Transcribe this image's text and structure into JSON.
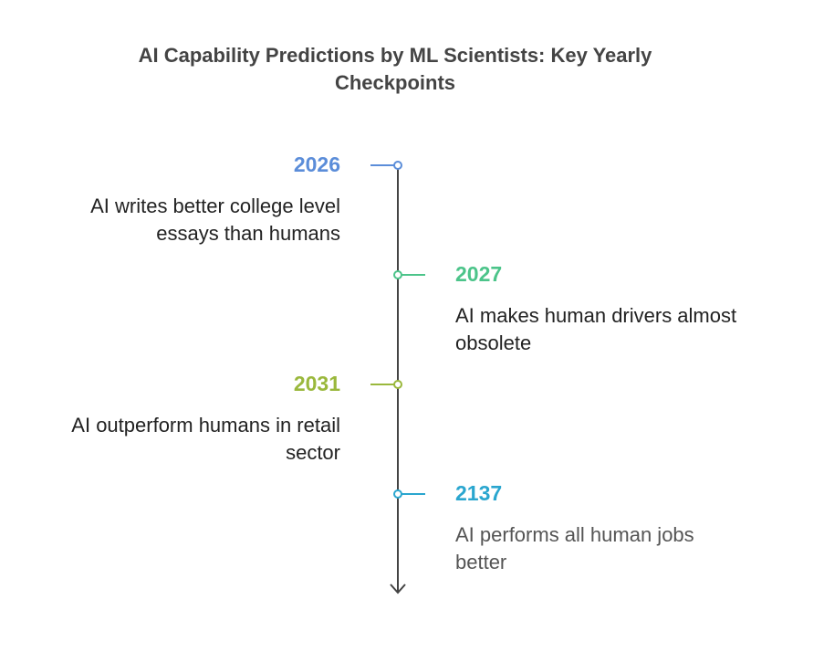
{
  "title": [
    "AI Capability Predictions by ML Scientists: Key Yearly",
    "Checkpoints"
  ],
  "events": [
    {
      "year": "2026",
      "side": "left",
      "color": "#5b8dd9",
      "text": [
        "AI writes better college level",
        "essays than humans"
      ]
    },
    {
      "year": "2027",
      "side": "right",
      "color": "#4cc48a",
      "text": [
        "AI makes human drivers almost",
        "obsolete"
      ]
    },
    {
      "year": "2031",
      "side": "left",
      "color": "#9ab83c",
      "text": [
        "AI outperform humans in retail",
        "sector"
      ]
    },
    {
      "year": "2137",
      "side": "right",
      "color": "#2aa6cf",
      "text": [
        "AI performs all human jobs",
        "better"
      ]
    }
  ]
}
